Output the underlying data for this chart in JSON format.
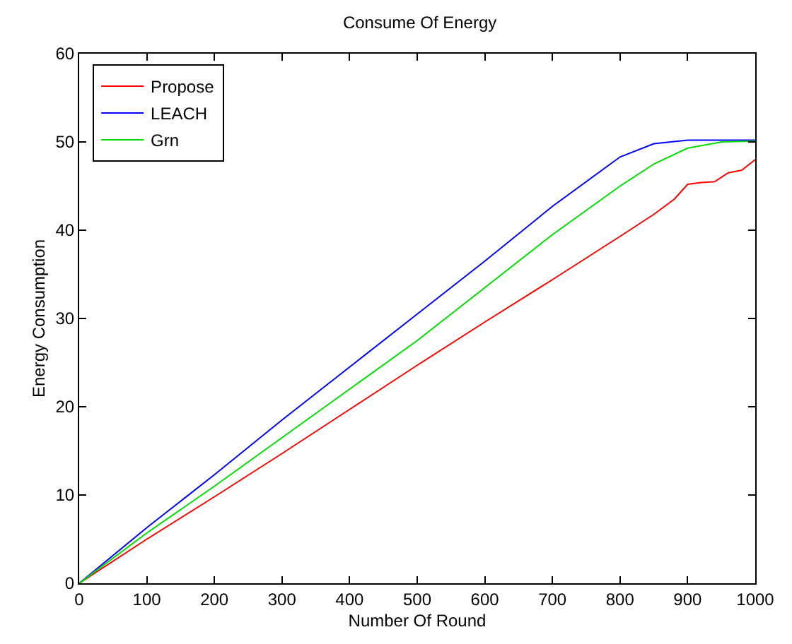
{
  "chart_data": {
    "type": "line",
    "title": "Consume Of Energy",
    "xlabel": "Number Of Round",
    "ylabel": "Energy Consumption",
    "xlim": [
      0,
      1000
    ],
    "xticks": [
      0,
      100,
      200,
      300,
      400,
      500,
      600,
      700,
      800,
      900,
      1000
    ],
    "ylim": [
      0,
      60
    ],
    "yticks": [
      0,
      10,
      20,
      30,
      40,
      50,
      60
    ],
    "grid": false,
    "legend": "top left",
    "marker": "none",
    "line_style": "solid",
    "series": [
      {
        "name": "Propose",
        "color": "#ff0000",
        "x": [
          0,
          100,
          200,
          300,
          400,
          500,
          600,
          700,
          800,
          850,
          880,
          900,
          920,
          940,
          960,
          980,
          1000
        ],
        "values": [
          0,
          5,
          9.8,
          14.7,
          19.7,
          24.7,
          29.6,
          34.4,
          39.3,
          41.8,
          43.5,
          45.2,
          45.4,
          45.5,
          46.5,
          46.8,
          48
        ]
      },
      {
        "name": "LEACH",
        "color": "#0000ff",
        "x": [
          0,
          100,
          200,
          300,
          400,
          500,
          600,
          700,
          800,
          850,
          900,
          950,
          1000
        ],
        "values": [
          0,
          6.3,
          12.3,
          18.5,
          24.5,
          30.5,
          36.5,
          42.7,
          48.3,
          49.8,
          50.2,
          50.2,
          50.2
        ]
      },
      {
        "name": "Grn",
        "color": "#00dd00",
        "x": [
          0,
          100,
          200,
          300,
          400,
          500,
          600,
          700,
          800,
          850,
          900,
          950,
          1000
        ],
        "values": [
          0,
          5.7,
          11,
          16.5,
          22,
          27.5,
          33.5,
          39.5,
          45,
          47.5,
          49.3,
          50,
          50.1
        ]
      }
    ]
  }
}
